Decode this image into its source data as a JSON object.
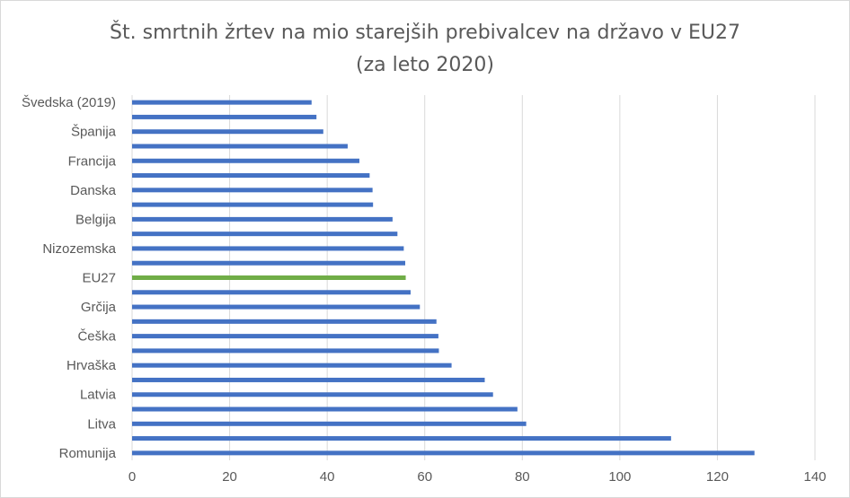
{
  "chart_data": {
    "type": "bar",
    "orientation": "horizontal",
    "title": "Št. smrtnih žrtev na mio starejših prebivalcev na državo v EU27",
    "subtitle": "(za leto 2020)",
    "categories": [
      "Švedska (2019)",
      "",
      "Španija",
      "",
      "Francija",
      "",
      "Danska",
      "",
      "Belgija",
      "",
      "Nizozemska",
      "",
      "EU27",
      "",
      "Grčija",
      "",
      "Češka",
      "",
      "Hrvaška",
      "",
      "Latvia",
      "",
      "Litva",
      "",
      "Romunija"
    ],
    "values": [
      36.8,
      37.8,
      39.2,
      44.2,
      46.6,
      48.7,
      49.3,
      49.4,
      53.4,
      54.4,
      55.7,
      56.0,
      56.1,
      57.1,
      59.0,
      62.4,
      62.8,
      62.9,
      65.5,
      72.3,
      74.0,
      79.0,
      80.8,
      110.5,
      127.6
    ],
    "highlight_index": 12,
    "colors": {
      "bar": "#4472c4",
      "highlight": "#70ad47",
      "grid": "#d9d9d9",
      "text": "#595959"
    },
    "xlim": [
      0,
      140
    ],
    "xticks": [
      0,
      20,
      40,
      60,
      80,
      100,
      120,
      140
    ],
    "grid": true,
    "legend": false
  }
}
